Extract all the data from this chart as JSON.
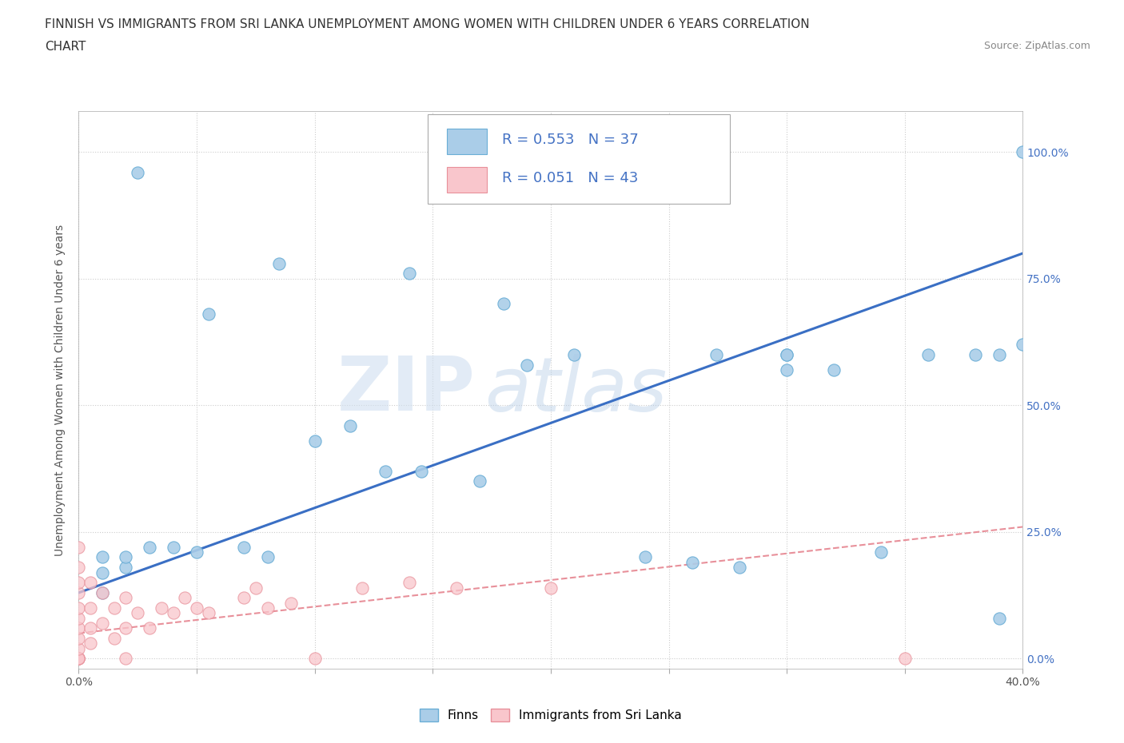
{
  "title_line1": "FINNISH VS IMMIGRANTS FROM SRI LANKA UNEMPLOYMENT AMONG WOMEN WITH CHILDREN UNDER 6 YEARS CORRELATION",
  "title_line2": "CHART",
  "source": "Source: ZipAtlas.com",
  "ylabel": "Unemployment Among Women with Children Under 6 years",
  "xlim": [
    0.0,
    0.4
  ],
  "ylim": [
    -0.02,
    1.08
  ],
  "x_ticks": [
    0.0,
    0.05,
    0.1,
    0.15,
    0.2,
    0.25,
    0.3,
    0.35,
    0.4
  ],
  "x_tick_labels": [
    "0.0%",
    "",
    "",
    "",
    "",
    "",
    "",
    "",
    "40.0%"
  ],
  "y_ticks": [
    0.0,
    0.25,
    0.5,
    0.75,
    1.0
  ],
  "y_tick_labels": [
    "0.0%",
    "25.0%",
    "50.0%",
    "75.0%",
    "100.0%"
  ],
  "finns_color": "#aacde8",
  "finns_edge_color": "#6aaed6",
  "sri_lanka_color": "#f9c6cc",
  "sri_lanka_edge_color": "#e8909a",
  "trend_finns_color": "#3a6fc4",
  "trend_sri_lanka_color": "#e8909a",
  "R_finns": 0.553,
  "N_finns": 37,
  "R_sri": 0.051,
  "N_sri": 43,
  "watermark_zip": "ZIP",
  "watermark_atlas": "atlas",
  "background_color": "#ffffff",
  "grid_color": "#cccccc",
  "finns_x": [
    0.025,
    0.085,
    0.055,
    0.14,
    0.18,
    0.27,
    0.3,
    0.01,
    0.01,
    0.01,
    0.02,
    0.02,
    0.03,
    0.04,
    0.05,
    0.07,
    0.08,
    0.1,
    0.115,
    0.13,
    0.145,
    0.17,
    0.19,
    0.21,
    0.24,
    0.26,
    0.28,
    0.3,
    0.3,
    0.32,
    0.34,
    0.36,
    0.38,
    0.39,
    0.39,
    0.4,
    0.4
  ],
  "finns_y": [
    0.96,
    0.78,
    0.68,
    0.76,
    0.7,
    0.6,
    0.6,
    0.2,
    0.17,
    0.13,
    0.18,
    0.2,
    0.22,
    0.22,
    0.21,
    0.22,
    0.2,
    0.43,
    0.46,
    0.37,
    0.37,
    0.35,
    0.58,
    0.6,
    0.2,
    0.19,
    0.18,
    0.6,
    0.57,
    0.57,
    0.21,
    0.6,
    0.6,
    0.08,
    0.6,
    0.62,
    1.0
  ],
  "sri_x": [
    0.0,
    0.0,
    0.0,
    0.0,
    0.0,
    0.0,
    0.0,
    0.0,
    0.0,
    0.0,
    0.0,
    0.0,
    0.0,
    0.0,
    0.0,
    0.005,
    0.005,
    0.005,
    0.005,
    0.01,
    0.01,
    0.015,
    0.015,
    0.02,
    0.02,
    0.02,
    0.025,
    0.03,
    0.035,
    0.04,
    0.045,
    0.05,
    0.055,
    0.07,
    0.075,
    0.08,
    0.09,
    0.1,
    0.12,
    0.14,
    0.16,
    0.2,
    0.35
  ],
  "sri_y": [
    0.0,
    0.0,
    0.0,
    0.0,
    0.0,
    0.0,
    0.02,
    0.04,
    0.06,
    0.08,
    0.1,
    0.13,
    0.15,
    0.18,
    0.22,
    0.03,
    0.06,
    0.1,
    0.15,
    0.07,
    0.13,
    0.04,
    0.1,
    0.0,
    0.06,
    0.12,
    0.09,
    0.06,
    0.1,
    0.09,
    0.12,
    0.1,
    0.09,
    0.12,
    0.14,
    0.1,
    0.11,
    0.0,
    0.14,
    0.15,
    0.14,
    0.14,
    0.0
  ]
}
